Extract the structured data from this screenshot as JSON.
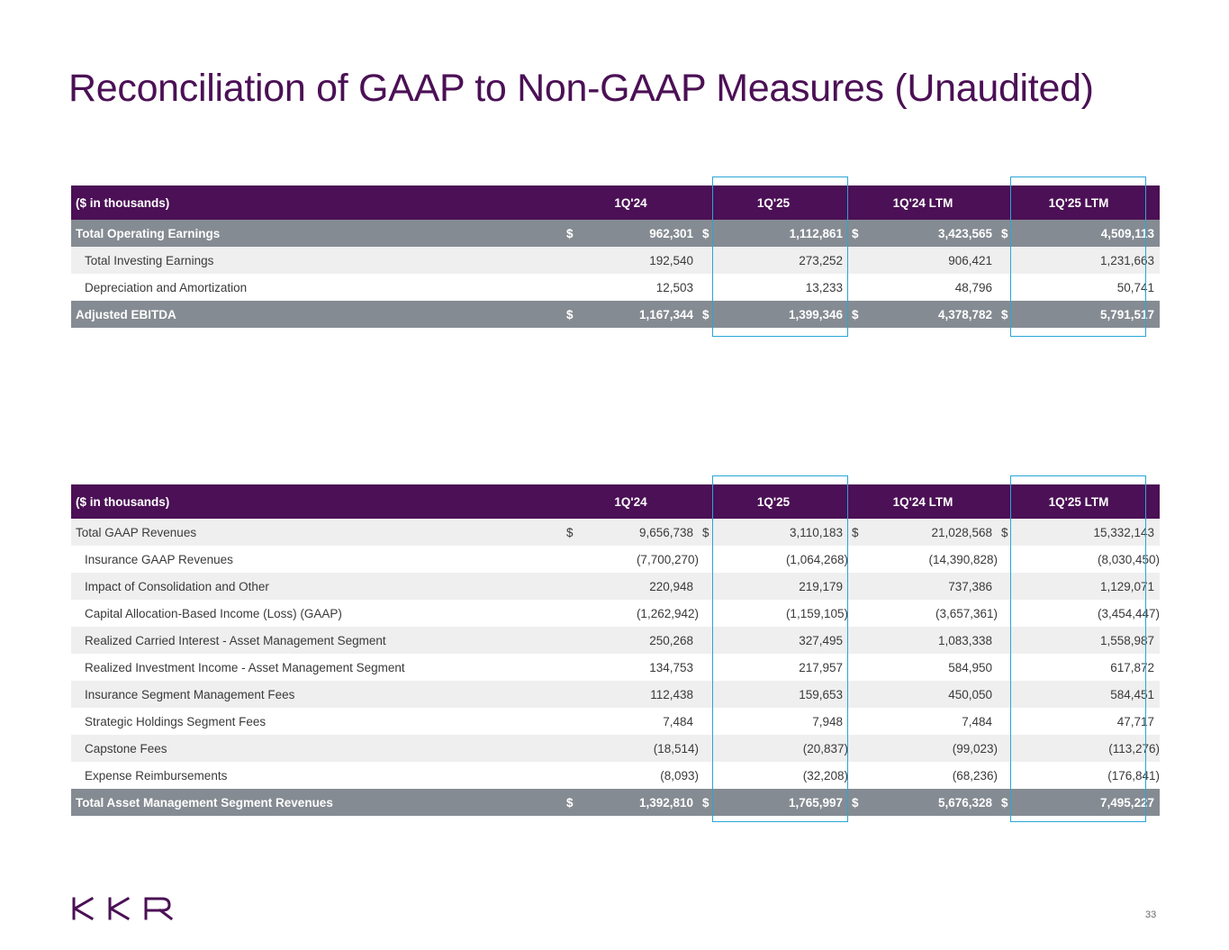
{
  "title": "Reconciliation of GAAP to Non-GAAP Measures (Unaudited)",
  "table1": {
    "unit_label": "($ in thousands)",
    "columns": [
      "1Q'24",
      "1Q'25",
      "1Q'24 LTM",
      "1Q'25 LTM"
    ],
    "rows": [
      {
        "label": "Total Operating Earnings",
        "type": "total",
        "dollar": "$",
        "values": [
          "962,301",
          "1,112,861",
          "3,423,565",
          "4,509,113"
        ]
      },
      {
        "label": "Total Investing Earnings",
        "type": "alt",
        "dollar": "",
        "values": [
          "192,540",
          "273,252",
          "906,421",
          "1,231,663"
        ]
      },
      {
        "label": "Depreciation and Amortization",
        "type": "plain",
        "dollar": "",
        "values": [
          "12,503",
          "13,233",
          "48,796",
          "50,741"
        ]
      },
      {
        "label": "Adjusted EBITDA",
        "type": "total",
        "dollar": "$",
        "values": [
          "1,167,344",
          "1,399,346",
          "4,378,782",
          "5,791,517"
        ]
      }
    ]
  },
  "table2": {
    "unit_label": "($ in thousands)",
    "columns": [
      "1Q'24",
      "1Q'25",
      "1Q'24 LTM",
      "1Q'25 LTM"
    ],
    "rows": [
      {
        "label": "Total GAAP Revenues",
        "type": "alt",
        "dollar": "$",
        "values": [
          "9,656,738",
          "3,110,183",
          "21,028,568",
          "15,332,143"
        ]
      },
      {
        "label": "Insurance GAAP Revenues",
        "type": "plain",
        "dollar": "",
        "values": [
          "(7,700,270)",
          "(1,064,268)",
          "(14,390,828)",
          "(8,030,450)"
        ]
      },
      {
        "label": "Impact of Consolidation and Other",
        "type": "alt",
        "dollar": "",
        "values": [
          "220,948",
          "219,179",
          "737,386",
          "1,129,071"
        ]
      },
      {
        "label": "Capital Allocation-Based Income (Loss) (GAAP)",
        "type": "plain",
        "dollar": "",
        "values": [
          "(1,262,942)",
          "(1,159,105)",
          "(3,657,361)",
          "(3,454,447)"
        ]
      },
      {
        "label": "Realized Carried Interest - Asset Management Segment",
        "type": "alt",
        "dollar": "",
        "values": [
          "250,268",
          "327,495",
          "1,083,338",
          "1,558,987"
        ]
      },
      {
        "label": "Realized Investment Income - Asset Management Segment",
        "type": "plain",
        "dollar": "",
        "values": [
          "134,753",
          "217,957",
          "584,950",
          "617,872"
        ]
      },
      {
        "label": "Insurance Segment Management Fees",
        "type": "alt",
        "dollar": "",
        "values": [
          "112,438",
          "159,653",
          "450,050",
          "584,451"
        ]
      },
      {
        "label": "Strategic Holdings Segment Fees",
        "type": "plain",
        "dollar": "",
        "values": [
          "7,484",
          "7,948",
          "7,484",
          "47,717"
        ]
      },
      {
        "label": "Capstone Fees",
        "type": "alt",
        "dollar": "",
        "values": [
          "(18,514)",
          "(20,837)",
          "(99,023)",
          "(113,276)"
        ]
      },
      {
        "label": "Expense Reimbursements",
        "type": "plain",
        "dollar": "",
        "values": [
          "(8,093)",
          "(32,208)",
          "(68,236)",
          "(176,841)"
        ]
      },
      {
        "label": "Total Asset Management Segment Revenues",
        "type": "total",
        "dollar": "$",
        "values": [
          "1,392,810",
          "1,765,997",
          "5,676,328",
          "7,495,227"
        ]
      }
    ]
  },
  "logo": {
    "text": "KKR"
  },
  "page_number": "33",
  "colors": {
    "header": "#4b1055",
    "total_row": "#858b92",
    "alt_row": "#efefef",
    "highlight": "#29a6d6",
    "title": "#4b1055"
  }
}
